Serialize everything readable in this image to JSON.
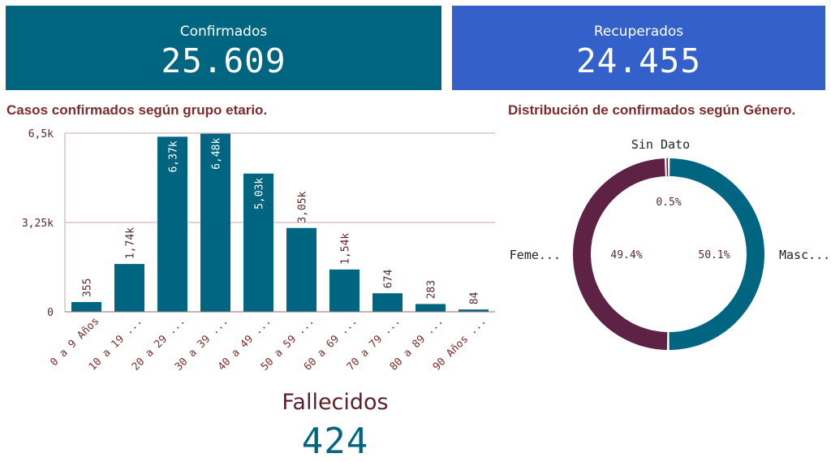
{
  "kpis": {
    "confirmed": {
      "label": "Confirmados",
      "value": "25.609"
    },
    "recovered": {
      "label": "Recuperados",
      "value": "24.455"
    },
    "deaths": {
      "label": "Fallecidos",
      "value": "424"
    }
  },
  "colors": {
    "confirmed_bg": "#006580",
    "recovered_bg": "#3461c9",
    "bar": "#006580",
    "female": "#5e2245",
    "male": "#006580",
    "title": "#7d2b2b"
  },
  "chart_data": [
    {
      "type": "bar",
      "title": "Casos confirmados según grupo etario.",
      "categories": [
        "0 a 9 Años",
        "10 a 19 ...",
        "20 a 29 ...",
        "30 a 39 ...",
        "40 a 49 ...",
        "50 a 59 ...",
        "60 a 69 ...",
        "70 a 79 ...",
        "80 a 89 ...",
        "90 Años ..."
      ],
      "values": [
        355,
        1740,
        6370,
        6480,
        5030,
        3050,
        1540,
        674,
        283,
        84
      ],
      "value_labels": [
        "355",
        "1,74k",
        "6,37k",
        "6,48k",
        "5,03k",
        "3,05k",
        "1,54k",
        "674",
        "283",
        "84"
      ],
      "yticks": [
        0,
        3250,
        6500
      ],
      "ytick_labels": [
        "0",
        "3,25k",
        "6,5k"
      ],
      "ylim": [
        0,
        6500
      ],
      "grid": true
    },
    {
      "type": "pie",
      "title": "Distribución de confirmados según Género.",
      "slices": [
        {
          "label": "Masc...",
          "percent_label": "50.1%",
          "value": 50.1
        },
        {
          "label": "Feme...",
          "percent_label": "49.4%",
          "value": 49.4
        },
        {
          "label": "Sin Dato",
          "percent_label": "0.5%",
          "value": 0.5
        }
      ]
    }
  ]
}
